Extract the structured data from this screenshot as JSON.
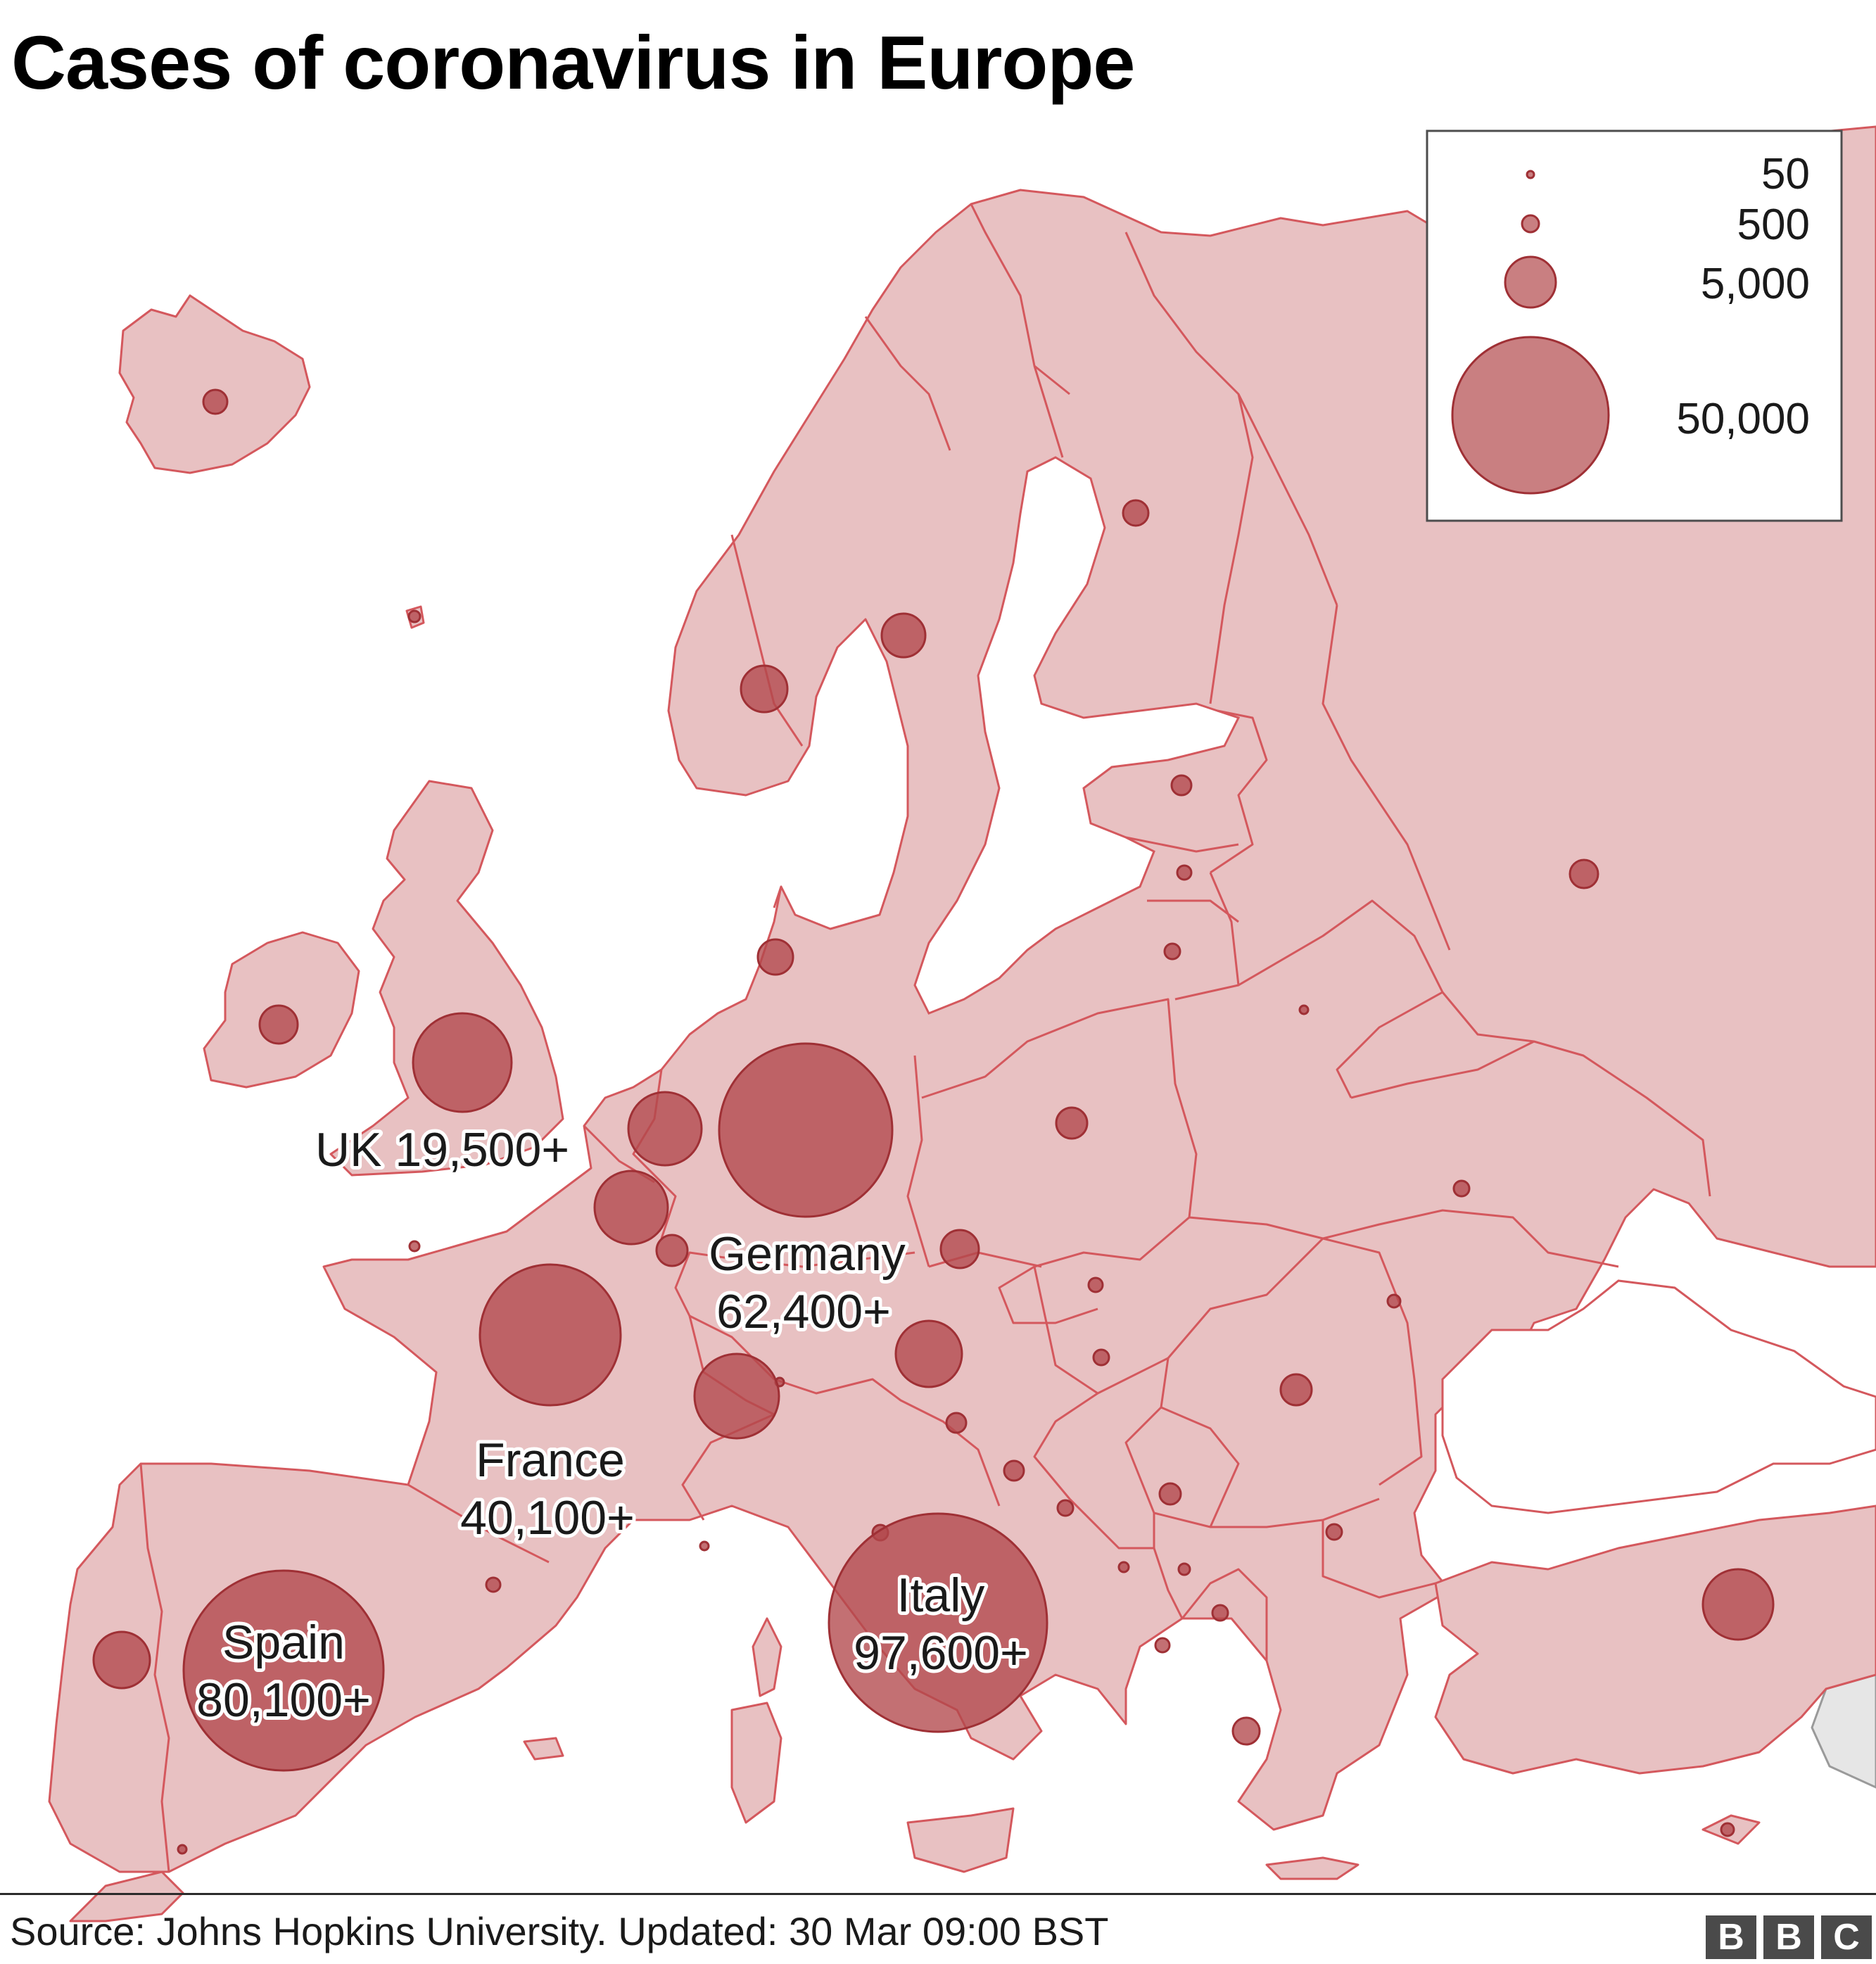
{
  "title": "Cases of coronavirus in Europe",
  "colors": {
    "land": "#e8c1c2",
    "border": "#d4585d",
    "bubble": "#b2484c",
    "non_europe_land": "#e6e6e6"
  },
  "legend": {
    "items": [
      {
        "label": "50",
        "value": 50
      },
      {
        "label": "500",
        "value": 500
      },
      {
        "label": "5,000",
        "value": 5000
      },
      {
        "label": "50,000",
        "value": 50000
      }
    ]
  },
  "labels": [
    {
      "country": "UK",
      "name": "UK",
      "value": "19,500+"
    },
    {
      "country": "Germany",
      "name": "Germany",
      "value": "62,400+"
    },
    {
      "country": "France",
      "name": "France",
      "value": "40,100+"
    },
    {
      "country": "Spain",
      "name": "Spain",
      "value": "80,100+"
    },
    {
      "country": "Italy",
      "name": "Italy",
      "value": "97,600+"
    }
  ],
  "footer": {
    "source": "Source: Johns Hopkins University. Updated: 30 Mar 09:00 BST",
    "logo": [
      "B",
      "B",
      "C"
    ]
  }
}
